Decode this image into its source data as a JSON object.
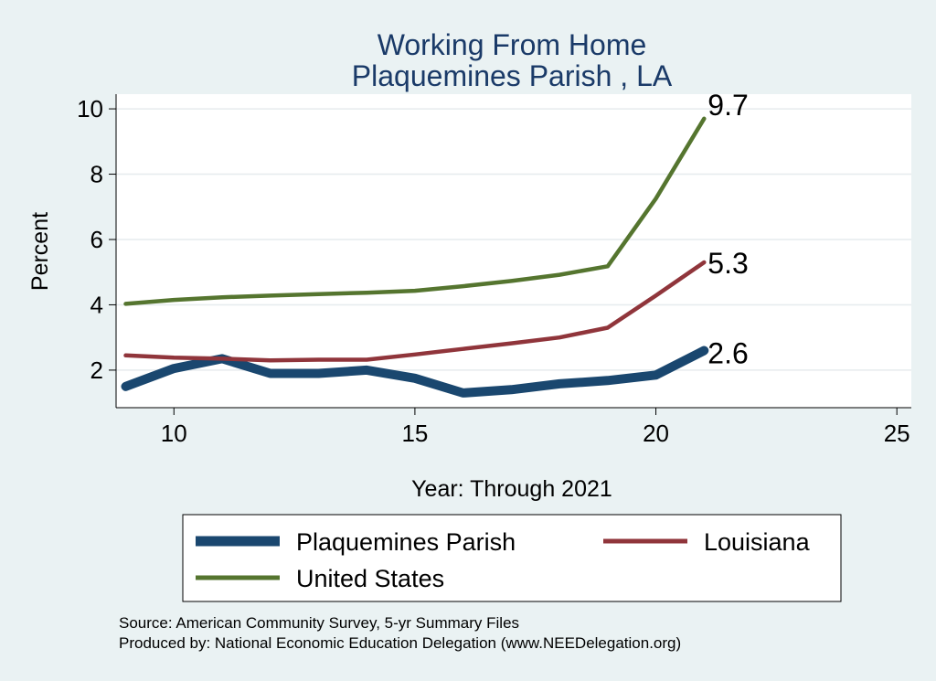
{
  "chart_data": {
    "type": "line",
    "title": "Working From Home",
    "subtitle": "Plaquemines Parish , LA",
    "xlabel": "Year: Through 2021",
    "ylabel": "Percent",
    "xlim": [
      8.8,
      25.3
    ],
    "ylim": [
      0.85,
      10.45
    ],
    "xticks": [
      10,
      15,
      20,
      25
    ],
    "yticks": [
      2,
      4,
      6,
      8,
      10
    ],
    "grid": true,
    "x": [
      9,
      10,
      11,
      12,
      13,
      14,
      15,
      16,
      17,
      18,
      19,
      20,
      21
    ],
    "series": [
      {
        "name": "Plaquemines Parish",
        "color": "#1a476f",
        "values": [
          1.5,
          2.05,
          2.35,
          1.9,
          1.9,
          2.0,
          1.75,
          1.3,
          1.4,
          1.58,
          1.68,
          1.85,
          2.6
        ],
        "end_label": "2.6"
      },
      {
        "name": "Louisiana",
        "color": "#90353b",
        "values": [
          2.45,
          2.38,
          2.35,
          2.3,
          2.32,
          2.32,
          2.48,
          2.65,
          2.82,
          3.0,
          3.3,
          4.28,
          5.3
        ],
        "end_label": "5.3"
      },
      {
        "name": "United States",
        "color": "#55752f",
        "values": [
          4.03,
          4.15,
          4.23,
          4.28,
          4.33,
          4.37,
          4.43,
          4.57,
          4.73,
          4.92,
          5.18,
          7.25,
          9.7
        ],
        "end_label": "9.7"
      }
    ],
    "legend": {
      "position": "bottom",
      "entries": [
        "Plaquemines Parish",
        "Louisiana",
        "United States"
      ]
    },
    "notes": [
      "Source: American Community Survey, 5-yr Summary Files",
      "Produced by: National Economic Education Delegation (www.NEEDelegation.org)"
    ]
  }
}
